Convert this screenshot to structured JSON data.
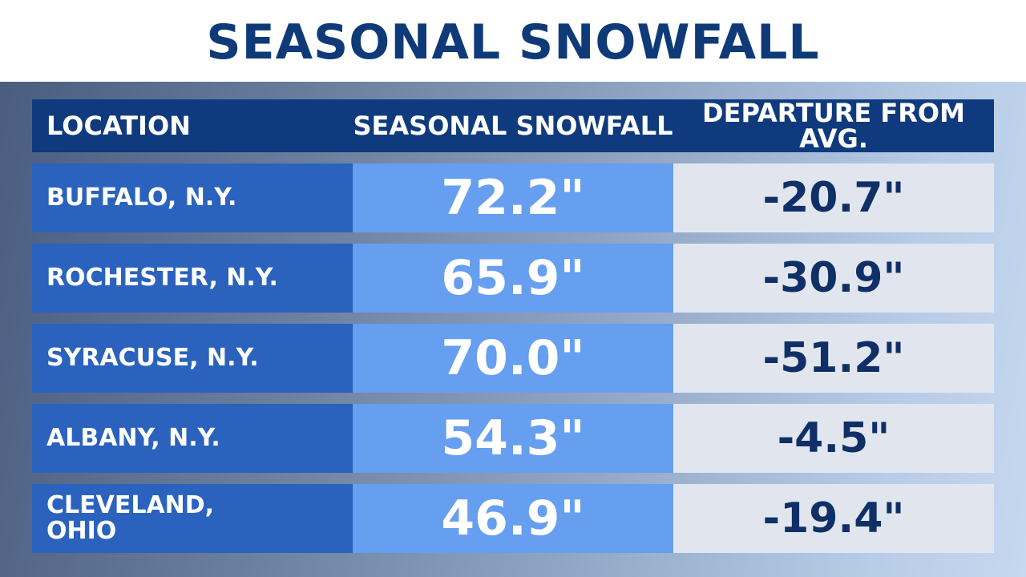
{
  "title": "SEASONAL SNOWFALL",
  "colors": {
    "title": "#0e3a78",
    "header_bg": "#0f3a7d",
    "location_bg": "#2a62bd",
    "snowfall_bg": "#669ef0",
    "departure_bg": "#e1e6ee",
    "departure_text": "#0f2f66"
  },
  "chart_data": {
    "type": "table",
    "title": "SEASONAL SNOWFALL",
    "columns": [
      "LOCATION",
      "SEASONAL SNOWFALL",
      "DEPARTURE FROM AVG."
    ],
    "rows": [
      {
        "location": "BUFFALO, N.Y.",
        "snowfall": "72.2\"",
        "departure": "-20.7\""
      },
      {
        "location": "ROCHESTER, N.Y.",
        "snowfall": "65.9\"",
        "departure": "-30.9\""
      },
      {
        "location": "SYRACUSE, N.Y.",
        "snowfall": "70.0\"",
        "departure": "-51.2\""
      },
      {
        "location": "ALBANY, N.Y.",
        "snowfall": "54.3\"",
        "departure": "-4.5\""
      },
      {
        "location": "CLEVELAND, OHIO",
        "snowfall": "46.9\"",
        "departure": "-19.4\""
      }
    ]
  }
}
